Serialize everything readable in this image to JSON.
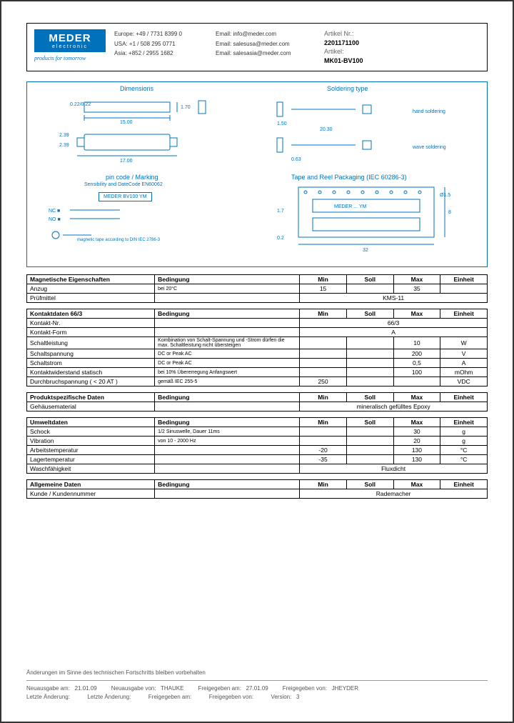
{
  "logo": {
    "line1": "MEDER",
    "line2": "electronic",
    "tagline": "products for tomorrow"
  },
  "contact": {
    "regions": [
      {
        "name": "Europe:",
        "phone": "+49 / 7731 8399 0"
      },
      {
        "name": "USA:",
        "phone": "+1 / 508 295 0771"
      },
      {
        "name": "Asia:",
        "phone": "+852 / 2955 1682"
      }
    ],
    "emails": [
      "Email: info@meder.com",
      "Email: salesusa@meder.com",
      "Email: salesasia@meder.com"
    ]
  },
  "article": {
    "nr_label": "Artikel Nr.:",
    "nr": "2201171100",
    "name_label": "Artikel:",
    "name": "MK01-BV100"
  },
  "diagram": {
    "dimensions_title": "Dimensions",
    "soldering_title": "Soldering type",
    "pincode_title": "pin code / Marking",
    "pincode_sub": "Sensibility and DateCode EN60062",
    "marking_text": "MEDER BV100 YM",
    "tape_title": "Tape and Reel Packaging (IEC 60286-3)",
    "hand_solder": "hand soldering",
    "wave_solder": "wave soldering",
    "note": "magnetic tape according to DIN IEC 2786-3"
  },
  "tables": [
    {
      "header": [
        "Magnetische Eigenschaften",
        "Bedingung",
        "Min",
        "Soll",
        "Max",
        "Einheit"
      ],
      "rows": [
        {
          "prop": "Anzug",
          "cond": "bei 20°C",
          "min": "15",
          "soll": "",
          "max": "35",
          "unit": ""
        },
        {
          "prop": "Prüfmittel",
          "cond": "",
          "span": "KMS-11"
        }
      ]
    },
    {
      "header": [
        "Kontaktdaten  66/3",
        "Bedingung",
        "Min",
        "Soll",
        "Max",
        "Einheit"
      ],
      "rows": [
        {
          "prop": "Kontakt-Nr.",
          "cond": "",
          "span": "66/3"
        },
        {
          "prop": "Kontakt-Form",
          "cond": "",
          "span": "A"
        },
        {
          "prop": "Schaltleistung",
          "cond": "Kombination von Schalt-Spannung und -Strom dürfen die max. Schaltleistung nicht übersteigen",
          "min": "",
          "soll": "",
          "max": "10",
          "unit": "W"
        },
        {
          "prop": "Schaltspannung",
          "cond": "DC or Peak AC",
          "min": "",
          "soll": "",
          "max": "200",
          "unit": "V"
        },
        {
          "prop": "Schaltstrom",
          "cond": "DC or Peak AC",
          "min": "",
          "soll": "",
          "max": "0,5",
          "unit": "A"
        },
        {
          "prop": "Kontaktwiderstand statisch",
          "cond": "bei 10% Übererregung Anfangswert",
          "min": "",
          "soll": "",
          "max": "100",
          "unit": "mOhm"
        },
        {
          "prop": "Durchbruchspannung ( < 20 AT )",
          "cond": "gemäß IEC 255-5",
          "min": "250",
          "soll": "",
          "max": "",
          "unit": "VDC"
        }
      ]
    },
    {
      "header": [
        "Produktspezifische Daten",
        "Bedingung",
        "Min",
        "Soll",
        "Max",
        "Einheit"
      ],
      "rows": [
        {
          "prop": "Gehäusematerial",
          "cond": "",
          "span": "mineralisch gefülltes Epoxy"
        }
      ]
    },
    {
      "header": [
        "Umweltdaten",
        "Bedingung",
        "Min",
        "Soll",
        "Max",
        "Einheit"
      ],
      "rows": [
        {
          "prop": "Schock",
          "cond": "1/2 Sinuswelle, Dauer 11ms",
          "min": "",
          "soll": "",
          "max": "30",
          "unit": "g"
        },
        {
          "prop": "Vibration",
          "cond": "von  10 - 2000 Hz",
          "min": "",
          "soll": "",
          "max": "20",
          "unit": "g"
        },
        {
          "prop": "Arbeitstemperatur",
          "cond": "",
          "min": "-20",
          "soll": "",
          "max": "130",
          "unit": "°C"
        },
        {
          "prop": "Lagertemperatur",
          "cond": "",
          "min": "-35",
          "soll": "",
          "max": "130",
          "unit": "°C"
        },
        {
          "prop": "Waschfähigkeit",
          "cond": "",
          "span": "Fluxdicht"
        }
      ]
    },
    {
      "header": [
        "Allgemeine Daten",
        "Bedingung",
        "Min",
        "Soll",
        "Max",
        "Einheit"
      ],
      "rows": [
        {
          "prop": "Kunde / Kundennummer",
          "cond": "",
          "span": "Rademacher"
        }
      ]
    }
  ],
  "footer": {
    "change_note": "Änderungen im Sinne des technischen Fortschritts bleiben vorbehalten",
    "row1": [
      {
        "l": "Neuausgabe am:",
        "v": "21.01.09"
      },
      {
        "l": "Neuausgabe von:",
        "v": "THAUKE"
      },
      {
        "l": "Freigegeben am:",
        "v": "27.01.09"
      },
      {
        "l": "Freigegeben von:",
        "v": "JHEYDER"
      }
    ],
    "row2": [
      {
        "l": "Letzte Änderung:",
        "v": ""
      },
      {
        "l": "Letzte Änderung:",
        "v": ""
      },
      {
        "l": "Freigegeben am:",
        "v": ""
      },
      {
        "l": "Freigegeben von:",
        "v": ""
      },
      {
        "l": "Version:",
        "v": "3"
      }
    ]
  }
}
